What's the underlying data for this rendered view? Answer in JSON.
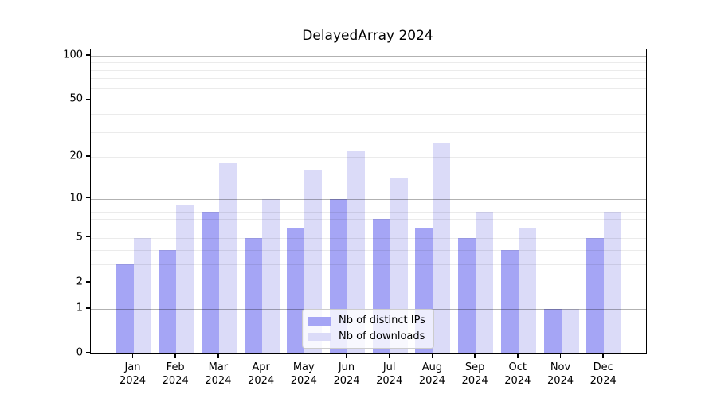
{
  "chart_data": {
    "type": "bar",
    "title": "DelayedArray 2024",
    "categories": [
      "Jan 2024",
      "Feb 2024",
      "Mar 2024",
      "Apr 2024",
      "May 2024",
      "Jun 2024",
      "Jul 2024",
      "Aug 2024",
      "Sep 2024",
      "Oct 2024",
      "Nov 2024",
      "Dec 2024"
    ],
    "series": [
      {
        "name": "Nb of distinct IPs",
        "color": "#a5a5f5",
        "values": [
          3,
          4,
          8,
          5,
          6,
          10,
          7,
          6,
          5,
          4,
          1,
          5
        ]
      },
      {
        "name": "Nb of downloads",
        "color": "#dbdbf8",
        "values": [
          5,
          9,
          18,
          10,
          16,
          22,
          14,
          25,
          8,
          6,
          1,
          8
        ]
      }
    ],
    "yscale": "log1p",
    "ylim": [
      0,
      110.3
    ],
    "yticks": [
      0,
      1,
      2,
      5,
      10,
      20,
      50,
      100
    ],
    "major_gridlines": [
      1,
      10,
      100
    ],
    "minor_gridlines": [
      2,
      3,
      4,
      5,
      6,
      7,
      8,
      9,
      20,
      30,
      40,
      50,
      60,
      70,
      80,
      90
    ],
    "grid": "on",
    "legend_position": "lower-center-inside",
    "axis_color": "#000000",
    "background_color": "#ffffff"
  }
}
